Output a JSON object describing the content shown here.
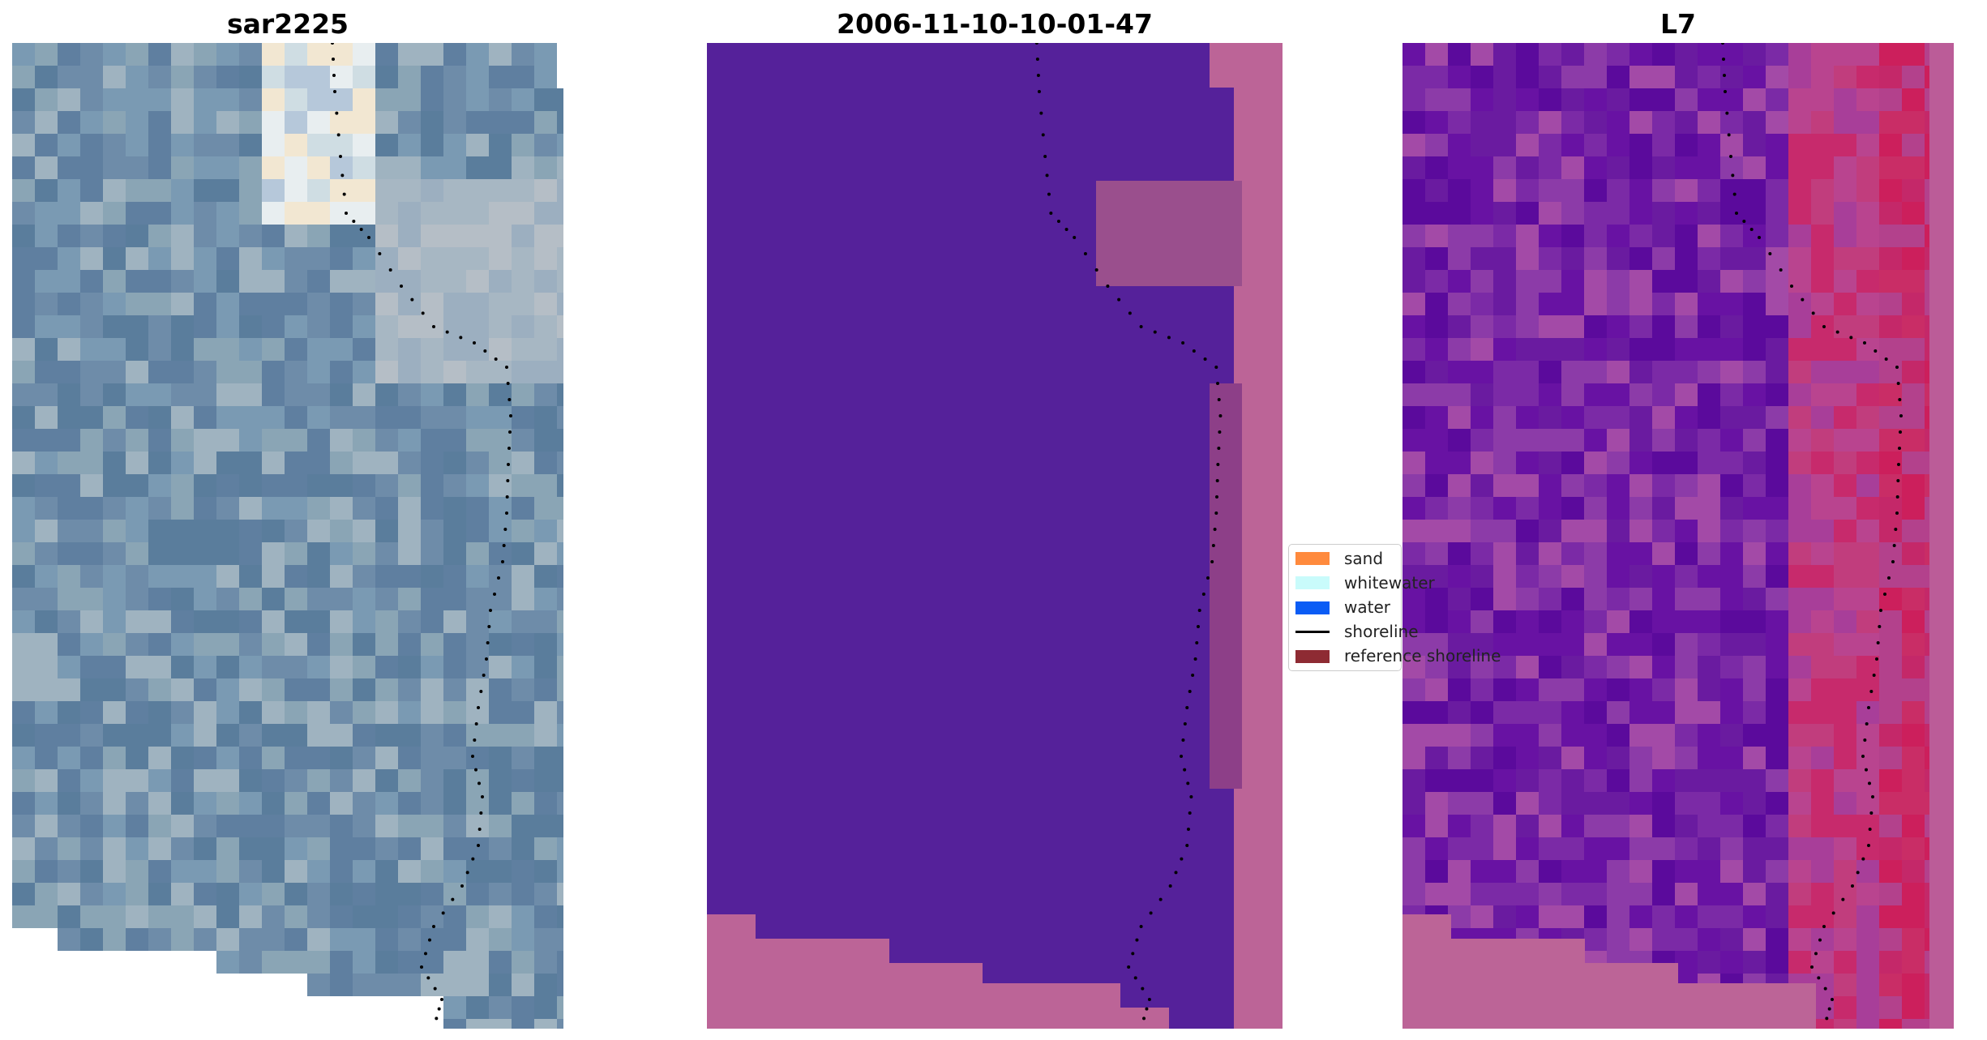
{
  "panels": [
    {
      "title": "sar2225",
      "colors": [
        "#5f7fa0",
        "#6e8ca9",
        "#7a9ab3",
        "#8aa5b5",
        "#5a7d9c",
        "#9fb3c0"
      ]
    },
    {
      "title": "2006-11-10-10-01-47",
      "base_color": "#55219a",
      "ref_color": "#bc6497"
    },
    {
      "title": "L7",
      "colors": [
        "#6a1ba0",
        "#7b2aa6",
        "#8c3ba8",
        "#a34aa7",
        "#6812a3",
        "#5b0a9c"
      ],
      "ref_color": "#bc6497"
    }
  ],
  "legend": {
    "items": [
      {
        "label": "sand",
        "color": "#ff8a3d",
        "kind": "patch"
      },
      {
        "label": "whitewater",
        "color": "#c9fbfb",
        "kind": "patch"
      },
      {
        "label": "water",
        "color": "#0a5cf5",
        "kind": "patch"
      },
      {
        "label": "shoreline",
        "color": "#000000",
        "kind": "line"
      },
      {
        "label": "reference shoreline",
        "color": "#8e2b33",
        "kind": "patch"
      }
    ]
  }
}
